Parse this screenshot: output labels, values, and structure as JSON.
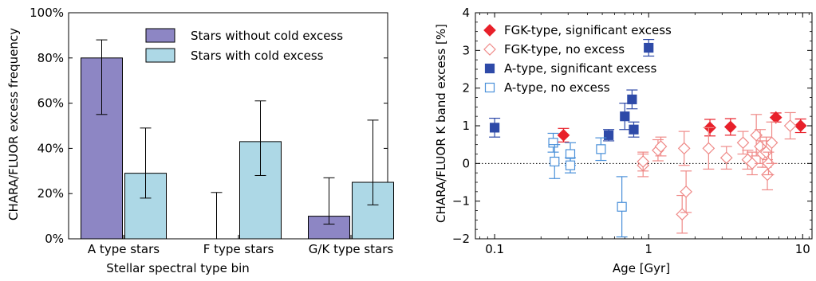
{
  "chart_data": [
    {
      "type": "bar",
      "ylabel": "CHARA/FLUOR excess frequency",
      "xlabel": "Stellar spectral type bin",
      "ylim": [
        0,
        100
      ],
      "yticks": [
        "0%",
        "20%",
        "40%",
        "60%",
        "80%",
        "100%"
      ],
      "categories": [
        "A type stars",
        "F type stars",
        "G/K type stars"
      ],
      "legend_position": "top-center",
      "series": [
        {
          "name": "Stars without cold excess",
          "color": "#8d86c4",
          "values": [
            80,
            0,
            10
          ],
          "err_low": [
            55,
            0,
            6.5
          ],
          "err_high": [
            88,
            20.5,
            27
          ]
        },
        {
          "name": "Stars with cold excess",
          "color": "#add8e6",
          "values": [
            29,
            43,
            25
          ],
          "err_low": [
            18,
            28,
            15
          ],
          "err_high": [
            49,
            61,
            52.5
          ]
        }
      ]
    },
    {
      "type": "scatter",
      "xlabel": "Age [Gyr]",
      "ylabel": "CHARA/FLUOR K band excess [%]",
      "xscale": "log",
      "xlim": [
        0.075,
        11.5
      ],
      "ylim": [
        -2,
        4
      ],
      "xticks": [
        "0.1",
        "1",
        "10"
      ],
      "yticks": [
        "−2",
        "−1",
        "0",
        "1",
        "2",
        "3",
        "4"
      ],
      "reference_line": 0,
      "legend_position": "top-left",
      "series": [
        {
          "name": "FGK-type, significant excess",
          "marker": "diamond-filled",
          "color": "#e8202a",
          "points": [
            {
              "x": 0.28,
              "y": 0.75,
              "e": 0.18
            },
            {
              "x": 2.5,
              "y": 0.95,
              "e": 0.22
            },
            {
              "x": 3.4,
              "y": 0.97,
              "e": 0.22
            },
            {
              "x": 6.7,
              "y": 1.22,
              "e": 0.12
            },
            {
              "x": 9.7,
              "y": 1.0,
              "e": 0.18
            }
          ]
        },
        {
          "name": "FGK-type, no excess",
          "marker": "diamond-open",
          "color": "#ef8a88",
          "points": [
            {
              "x": 0.92,
              "y": -0.05,
              "e": 0.3
            },
            {
              "x": 0.92,
              "y": 0.05,
              "e": 0.25
            },
            {
              "x": 1.15,
              "y": 0.35,
              "e": 0.28
            },
            {
              "x": 1.2,
              "y": 0.45,
              "e": 0.25
            },
            {
              "x": 1.65,
              "y": -1.35,
              "e": 0.5
            },
            {
              "x": 1.75,
              "y": -0.75,
              "e": 0.55
            },
            {
              "x": 1.7,
              "y": 0.4,
              "e": 0.45
            },
            {
              "x": 2.45,
              "y": 0.4,
              "e": 0.55
            },
            {
              "x": 3.2,
              "y": 0.15,
              "e": 0.3
            },
            {
              "x": 4.1,
              "y": 0.55,
              "e": 0.3
            },
            {
              "x": 4.4,
              "y": 0.1,
              "e": 0.25
            },
            {
              "x": 4.7,
              "y": 0.0,
              "e": 0.3
            },
            {
              "x": 5.0,
              "y": 0.75,
              "e": 0.55
            },
            {
              "x": 5.3,
              "y": 0.45,
              "e": 0.45
            },
            {
              "x": 5.5,
              "y": 0.25,
              "e": 0.35
            },
            {
              "x": 5.8,
              "y": 0.3,
              "e": 0.4
            },
            {
              "x": 5.9,
              "y": -0.3,
              "e": 0.4
            },
            {
              "x": 6.0,
              "y": 0.0,
              "e": 0.3
            },
            {
              "x": 6.3,
              "y": 0.55,
              "e": 0.55
            },
            {
              "x": 8.3,
              "y": 1.0,
              "e": 0.35
            }
          ]
        },
        {
          "name": "A-type, significant excess",
          "marker": "square-filled",
          "color": "#2e4aa8",
          "points": [
            {
              "x": 0.1,
              "y": 0.95,
              "e": 0.25
            },
            {
              "x": 0.55,
              "y": 0.75,
              "e": 0.15
            },
            {
              "x": 0.7,
              "y": 1.25,
              "e": 0.35
            },
            {
              "x": 0.78,
              "y": 1.7,
              "e": 0.25
            },
            {
              "x": 0.8,
              "y": 0.9,
              "e": 0.2
            },
            {
              "x": 1.0,
              "y": 3.07,
              "e": 0.22
            }
          ]
        },
        {
          "name": "A-type, no excess",
          "marker": "square-open",
          "color": "#4a90d9",
          "points": [
            {
              "x": 0.24,
              "y": 0.55,
              "e": 0.25
            },
            {
              "x": 0.245,
              "y": 0.05,
              "e": 0.45
            },
            {
              "x": 0.31,
              "y": 0.25,
              "e": 0.3
            },
            {
              "x": 0.31,
              "y": -0.05,
              "e": 0.2
            },
            {
              "x": 0.49,
              "y": 0.38,
              "e": 0.3
            },
            {
              "x": 0.67,
              "y": -1.15,
              "e": 0.8
            }
          ]
        }
      ]
    }
  ]
}
